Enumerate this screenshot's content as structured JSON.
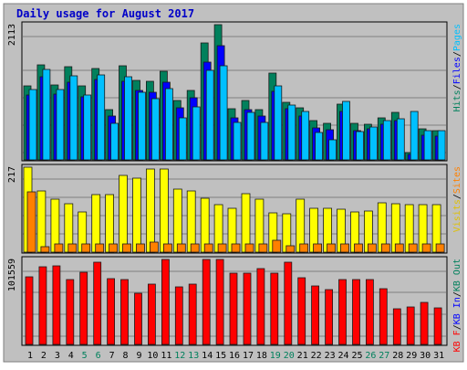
{
  "chart_data": {
    "type": "bar",
    "title": "Daily usage for August 2017",
    "categories": [
      "1",
      "2",
      "3",
      "4",
      "5",
      "6",
      "7",
      "8",
      "9",
      "10",
      "11",
      "12",
      "13",
      "14",
      "15",
      "16",
      "17",
      "18",
      "19",
      "20",
      "21",
      "22",
      "23",
      "24",
      "25",
      "26",
      "27",
      "28",
      "29",
      "30",
      "31"
    ],
    "weekend_days": [
      "5",
      "6",
      "12",
      "13",
      "19",
      "20",
      "26",
      "27"
    ],
    "panels": [
      {
        "id": "hits-files-pages",
        "max_label": "2113",
        "ylim": [
          0,
          2113
        ],
        "right_labels": [
          {
            "text": "Hits",
            "color": "#00805c"
          },
          {
            "text": "/",
            "color": "#000000"
          },
          {
            "text": "Files",
            "color": "#0000ff"
          },
          {
            "text": "/",
            "color": "#000000"
          },
          {
            "text": "Pages",
            "color": "#00c0ff"
          }
        ],
        "series": [
          {
            "name": "Hits",
            "color": "#00805c",
            "values": [
              1160,
              1490,
              1170,
              1450,
              1150,
              1430,
              780,
              1470,
              1240,
              1230,
              1380,
              930,
              1090,
              1830,
              2113,
              800,
              930,
              790,
              1350,
              900,
              810,
              620,
              570,
              870,
              570,
              560,
              660,
              740,
              120,
              480,
              460
            ]
          },
          {
            "name": "Files",
            "color": "#0000ff",
            "values": [
              1010,
              1300,
              1030,
              1210,
              990,
              1260,
              690,
              1230,
              1080,
              1060,
              1210,
              820,
              970,
              1530,
              1790,
              650,
              780,
              690,
              1070,
              800,
              690,
              500,
              470,
              760,
              460,
              480,
              560,
              620,
              90,
              390,
              370
            ]
          },
          {
            "name": "Pages",
            "color": "#00c0ff",
            "values": [
              1100,
              1410,
              1100,
              1310,
              1020,
              1330,
              570,
              1300,
              1050,
              950,
              1120,
              660,
              830,
              1400,
              1470,
              590,
              740,
              580,
              1160,
              850,
              760,
              430,
              310,
              920,
              440,
              520,
              610,
              640,
              750,
              460,
              450
            ]
          }
        ]
      },
      {
        "id": "visits-sites",
        "max_label": "217",
        "ylim": [
          0,
          217
        ],
        "right_labels": [
          {
            "text": "Visits",
            "color": "#e0c000"
          },
          {
            "text": "/",
            "color": "#000000"
          },
          {
            "text": "Sites",
            "color": "#ff8000"
          }
        ],
        "series": [
          {
            "name": "Visits",
            "color": "#ffff00",
            "values": [
              217,
              157,
              135,
              124,
              103,
              147,
              146,
              196,
              188,
              213,
              213,
              162,
              157,
              137,
              122,
              112,
              149,
              136,
              101,
              99,
              135,
              113,
              112,
              109,
              103,
              104,
              127,
              123,
              121,
              121,
              121
            ]
          },
          {
            "name": "Sites",
            "color": "#ff8000",
            "values": [
              155,
              13,
              21,
              21,
              21,
              21,
              21,
              21,
              21,
              25,
              21,
              21,
              21,
              21,
              21,
              21,
              21,
              21,
              31,
              16,
              21,
              21,
              21,
              21,
              21,
              21,
              21,
              21,
              21,
              21,
              21
            ]
          }
        ]
      },
      {
        "id": "kbin-kbout-kbf",
        "max_label": "101559",
        "ylim": [
          0,
          101559
        ],
        "right_labels": [
          {
            "text": "KB F",
            "color": "#ff0000"
          },
          {
            "text": "/",
            "color": "#000000"
          },
          {
            "text": "KB In",
            "color": "#0000ff"
          },
          {
            "text": "/",
            "color": "#000000"
          },
          {
            "text": "KB Out",
            "color": "#00805c"
          }
        ],
        "series": [
          {
            "name": "KB F",
            "color": "#ff0000",
            "values": [
              81000,
              93000,
              94000,
              77000,
              86000,
              98000,
              79000,
              77000,
              61000,
              72000,
              101559,
              69000,
              72000,
              101559,
              101559,
              85000,
              85000,
              91000,
              85000,
              98000,
              80000,
              70000,
              66000,
              77000,
              78000,
              77000,
              67000,
              43000,
              45000,
              50000,
              44000
            ]
          }
        ]
      }
    ]
  }
}
